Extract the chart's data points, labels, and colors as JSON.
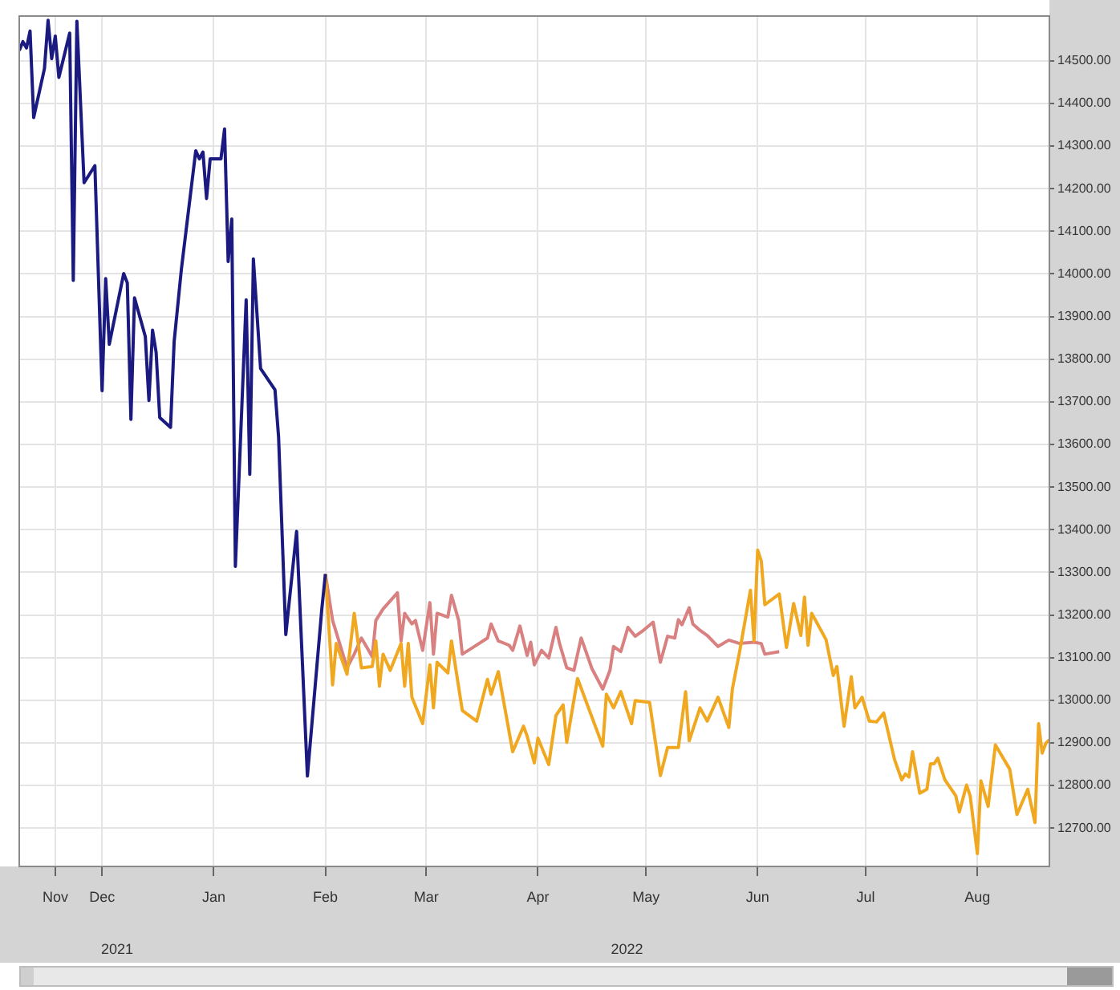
{
  "chart_data": {
    "type": "line",
    "xlim": [
      "2021-11-08",
      "2022-08-21"
    ],
    "ylim": [
      12610,
      14605
    ],
    "xticks": [
      {
        "value": "2021-11-18",
        "label": "Nov"
      },
      {
        "value": "2021-12-01",
        "label": "Dec"
      },
      {
        "value": "2022-01-01",
        "label": "Jan"
      },
      {
        "value": "2022-02-01",
        "label": "Feb"
      },
      {
        "value": "2022-03-01",
        "label": "Mar"
      },
      {
        "value": "2022-04-01",
        "label": "Apr"
      },
      {
        "value": "2022-05-01",
        "label": "May"
      },
      {
        "value": "2022-06-01",
        "label": "Jun"
      },
      {
        "value": "2022-07-01",
        "label": "Jul"
      },
      {
        "value": "2022-08-01",
        "label": "Aug"
      }
    ],
    "yticks": [
      {
        "value": 12700,
        "label": "12700.00"
      },
      {
        "value": 12800,
        "label": "12800.00"
      },
      {
        "value": 12900,
        "label": "12900.00"
      },
      {
        "value": 13000,
        "label": "13000.00"
      },
      {
        "value": 13100,
        "label": "13100.00"
      },
      {
        "value": 13200,
        "label": "13200.00"
      },
      {
        "value": 13300,
        "label": "13300.00"
      },
      {
        "value": 13400,
        "label": "13400.00"
      },
      {
        "value": 13500,
        "label": "13500.00"
      },
      {
        "value": 13600,
        "label": "13600.00"
      },
      {
        "value": 13700,
        "label": "13700.00"
      },
      {
        "value": 13800,
        "label": "13800.00"
      },
      {
        "value": 13900,
        "label": "13900.00"
      },
      {
        "value": 14000,
        "label": "14000.00"
      },
      {
        "value": 14100,
        "label": "14100.00"
      },
      {
        "value": 14200,
        "label": "14200.00"
      },
      {
        "value": 14300,
        "label": "14300.00"
      },
      {
        "value": 14400,
        "label": "14400.00"
      },
      {
        "value": 14500,
        "label": "14500.00"
      }
    ],
    "grid": true,
    "legend": false,
    "marker": "none",
    "line_style": "solid",
    "annotations": [
      "2021",
      "2022"
    ],
    "series": [
      {
        "color": "#1a1a80",
        "x": [
          "2021-11-08",
          "2021-11-09",
          "2021-11-10",
          "2021-11-11",
          "2021-11-12",
          "2021-11-15",
          "2021-11-16",
          "2021-11-17",
          "2021-11-18",
          "2021-11-19",
          "2021-11-22",
          "2021-11-23",
          "2021-11-24",
          "2021-11-26",
          "2021-11-29",
          "2021-12-01",
          "2021-12-02",
          "2021-12-03",
          "2021-12-07",
          "2021-12-08",
          "2021-12-09",
          "2021-12-10",
          "2021-12-13",
          "2021-12-14",
          "2021-12-15",
          "2021-12-16",
          "2021-12-17",
          "2021-12-20",
          "2021-12-21",
          "2021-12-23",
          "2021-12-27",
          "2021-12-28",
          "2021-12-29",
          "2021-12-30",
          "2021-12-31",
          "2022-01-03",
          "2022-01-04",
          "2022-01-05",
          "2022-01-06",
          "2022-01-07",
          "2022-01-10",
          "2022-01-11",
          "2022-01-12",
          "2022-01-14",
          "2022-01-18",
          "2022-01-19",
          "2022-01-21",
          "2022-01-24",
          "2022-01-27",
          "2022-01-31",
          "2022-02-01"
        ],
        "values": [
          14524,
          14545,
          14530,
          14570,
          14367,
          14482,
          14595,
          14505,
          14558,
          14461,
          14565,
          13985,
          14593,
          14214,
          14254,
          13726,
          13989,
          13835,
          14001,
          13979,
          13659,
          13944,
          13853,
          13703,
          13868,
          13816,
          13663,
          13640,
          13841,
          14010,
          14289,
          14270,
          14286,
          14177,
          14270,
          14270,
          14340,
          14029,
          14129,
          13314,
          13939,
          13530,
          14035,
          13778,
          13728,
          13617,
          13154,
          13396,
          12822,
          13214,
          13296
        ]
      },
      {
        "color": "#f0a820",
        "x": [
          "2022-02-01",
          "2022-02-03",
          "2022-02-04",
          "2022-02-07",
          "2022-02-09",
          "2022-02-11",
          "2022-02-14",
          "2022-02-15",
          "2022-02-16",
          "2022-02-17",
          "2022-02-19",
          "2022-02-22",
          "2022-02-23",
          "2022-02-24",
          "2022-02-25",
          "2022-02-28",
          "2022-03-02",
          "2022-03-03",
          "2022-03-04",
          "2022-03-07",
          "2022-03-08",
          "2022-03-11",
          "2022-03-15",
          "2022-03-18",
          "2022-03-19",
          "2022-03-21",
          "2022-03-25",
          "2022-03-28",
          "2022-03-29",
          "2022-03-31",
          "2022-04-01",
          "2022-04-04",
          "2022-04-06",
          "2022-04-08",
          "2022-04-09",
          "2022-04-12",
          "2022-04-19",
          "2022-04-20",
          "2022-04-22",
          "2022-04-24",
          "2022-04-27",
          "2022-04-28",
          "2022-05-02",
          "2022-05-05",
          "2022-05-07",
          "2022-05-10",
          "2022-05-12",
          "2022-05-13",
          "2022-05-16",
          "2022-05-18",
          "2022-05-21",
          "2022-05-24",
          "2022-05-25",
          "2022-05-27",
          "2022-05-30",
          "2022-05-31",
          "2022-06-01",
          "2022-06-02",
          "2022-06-03",
          "2022-06-07",
          "2022-06-09",
          "2022-06-11",
          "2022-06-13",
          "2022-06-14",
          "2022-06-15",
          "2022-06-16",
          "2022-06-20",
          "2022-06-22",
          "2022-06-23",
          "2022-06-25",
          "2022-06-27",
          "2022-06-28",
          "2022-06-30",
          "2022-07-02",
          "2022-07-04",
          "2022-07-06",
          "2022-07-09",
          "2022-07-11",
          "2022-07-12",
          "2022-07-13",
          "2022-07-14",
          "2022-07-16",
          "2022-07-18",
          "2022-07-19",
          "2022-07-20",
          "2022-07-21",
          "2022-07-23",
          "2022-07-26",
          "2022-07-27",
          "2022-07-29",
          "2022-07-30",
          "2022-08-01",
          "2022-08-02",
          "2022-08-04",
          "2022-08-06",
          "2022-08-10",
          "2022-08-12",
          "2022-08-15",
          "2022-08-17",
          "2022-08-18",
          "2022-08-19",
          "2022-08-20",
          "2022-08-21"
        ],
        "values": [
          13296,
          13036,
          13133,
          13061,
          13204,
          13076,
          13079,
          13139,
          13033,
          13108,
          13070,
          13133,
          13033,
          13133,
          13007,
          12945,
          13083,
          12982,
          13089,
          13064,
          13139,
          12976,
          12951,
          13049,
          13014,
          13067,
          12879,
          12939,
          12916,
          12853,
          12911,
          12849,
          12964,
          12989,
          12901,
          13051,
          12892,
          13014,
          12982,
          13020,
          12945,
          12999,
          12995,
          12823,
          12889,
          12889,
          13020,
          12905,
          12982,
          12951,
          13007,
          12936,
          13027,
          13114,
          13258,
          13139,
          13352,
          13327,
          13224,
          13249,
          13124,
          13227,
          13152,
          13242,
          13129,
          13204,
          13142,
          13058,
          13079,
          12939,
          13055,
          12982,
          13007,
          12951,
          12949,
          12970,
          12861,
          12813,
          12827,
          12820,
          12879,
          12782,
          12791,
          12851,
          12851,
          12864,
          12813,
          12776,
          12738,
          12801,
          12776,
          12640,
          12811,
          12751,
          12895,
          12838,
          12732,
          12791,
          12713,
          12945,
          12876,
          12899,
          12907
        ]
      },
      {
        "color": "#d98080",
        "x": [
          "2022-02-01",
          "2022-02-03",
          "2022-02-07",
          "2022-02-09",
          "2022-02-11",
          "2022-02-14",
          "2022-02-15",
          "2022-02-17",
          "2022-02-21",
          "2022-02-22",
          "2022-02-23",
          "2022-02-25",
          "2022-02-26",
          "2022-02-28",
          "2022-03-02",
          "2022-03-03",
          "2022-03-04",
          "2022-03-07",
          "2022-03-08",
          "2022-03-10",
          "2022-03-11",
          "2022-03-14",
          "2022-03-18",
          "2022-03-19",
          "2022-03-21",
          "2022-03-24",
          "2022-03-25",
          "2022-03-27",
          "2022-03-29",
          "2022-03-30",
          "2022-03-31",
          "2022-04-02",
          "2022-04-04",
          "2022-04-06",
          "2022-04-07",
          "2022-04-09",
          "2022-04-11",
          "2022-04-13",
          "2022-04-16",
          "2022-04-19",
          "2022-04-21",
          "2022-04-22",
          "2022-04-24",
          "2022-04-26",
          "2022-04-28",
          "2022-04-30",
          "2022-05-03",
          "2022-05-05",
          "2022-05-07",
          "2022-05-09",
          "2022-05-10",
          "2022-05-11",
          "2022-05-13",
          "2022-05-14",
          "2022-05-16",
          "2022-05-18",
          "2022-05-21",
          "2022-05-24",
          "2022-05-27",
          "2022-05-31",
          "2022-06-02",
          "2022-06-03",
          "2022-06-07"
        ],
        "values": [
          13296,
          13187,
          13076,
          13108,
          13146,
          13102,
          13187,
          13214,
          13252,
          13139,
          13204,
          13179,
          13187,
          13117,
          13229,
          13108,
          13204,
          13195,
          13246,
          13187,
          13108,
          13124,
          13146,
          13179,
          13139,
          13129,
          13117,
          13174,
          13105,
          13136,
          13083,
          13117,
          13099,
          13171,
          13133,
          13076,
          13070,
          13146,
          13074,
          13026,
          13070,
          13126,
          13114,
          13171,
          13150,
          13162,
          13183,
          13089,
          13150,
          13146,
          13189,
          13177,
          13217,
          13179,
          13164,
          13152,
          13126,
          13141,
          13133,
          13136,
          13133,
          13108,
          13114
        ]
      }
    ]
  }
}
